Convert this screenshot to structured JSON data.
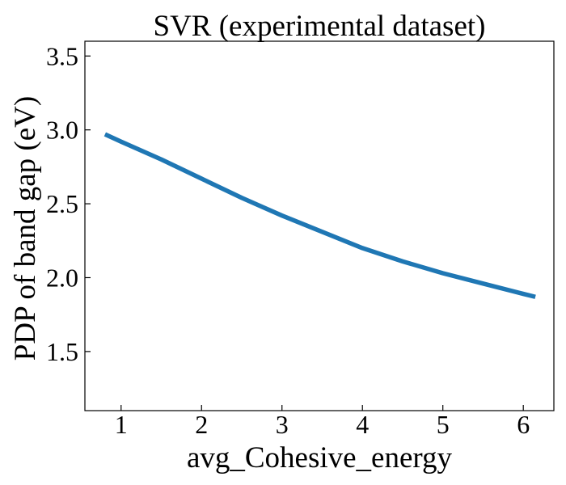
{
  "chart_data": {
    "type": "line",
    "title": "SVR (experimental dataset)",
    "xlabel": "avg_Cohesive_energy",
    "ylabel": "PDP of band gap (eV)",
    "xlim": [
      0.55,
      6.38
    ],
    "ylim": [
      1.1,
      3.6
    ],
    "xticks": [
      1,
      2,
      3,
      4,
      5,
      6
    ],
    "yticks": [
      1.5,
      2.0,
      2.5,
      3.0,
      3.5
    ],
    "xtick_labels": [
      "1",
      "2",
      "3",
      "4",
      "5",
      "6"
    ],
    "ytick_labels": [
      "1.5",
      "2.0",
      "2.5",
      "3.0",
      "3.5"
    ],
    "grid": false,
    "series": [
      {
        "color": "#1f77b4",
        "x": [
          0.8,
          1.0,
          1.5,
          2.0,
          2.5,
          3.0,
          3.5,
          4.0,
          4.5,
          5.0,
          5.5,
          6.0,
          6.15
        ],
        "y": [
          2.97,
          2.92,
          2.8,
          2.67,
          2.54,
          2.42,
          2.31,
          2.2,
          2.11,
          2.03,
          1.96,
          1.89,
          1.87
        ]
      }
    ]
  }
}
